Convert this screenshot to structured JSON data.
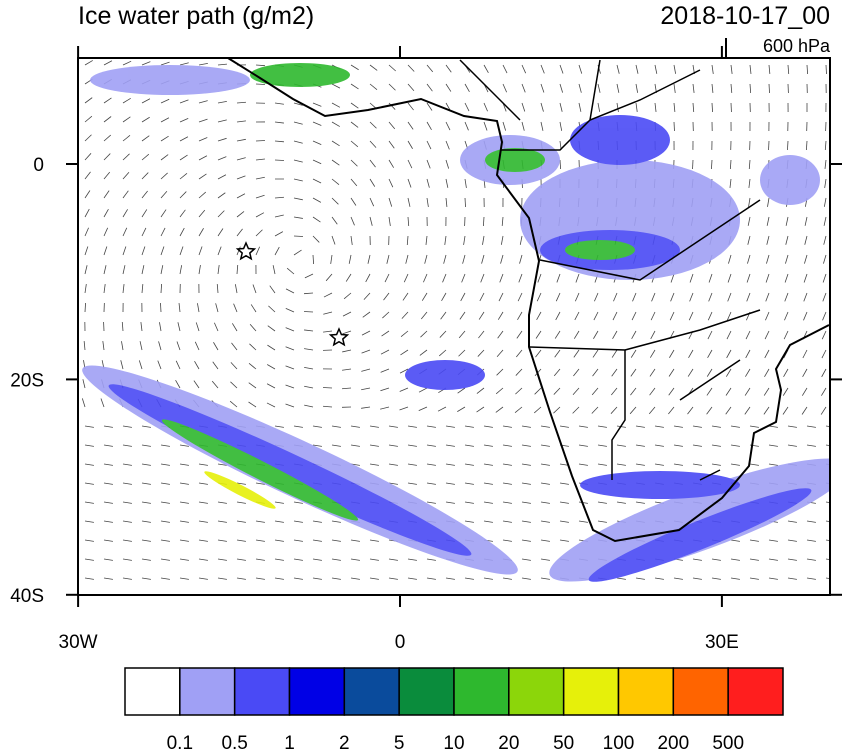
{
  "header": {
    "title": "Ice water path (g/m2)",
    "date": "2018-10-17_00",
    "level": "600 hPa"
  },
  "map": {
    "lat_ticks": [
      {
        "value": 0,
        "label": "0"
      },
      {
        "value": -20,
        "label": "20S"
      },
      {
        "value": -40,
        "label": "40S"
      }
    ],
    "lon_ticks": [
      {
        "value": -30,
        "label": "30W"
      },
      {
        "value": 0,
        "label": "0"
      },
      {
        "value": 30,
        "label": "30E"
      }
    ]
  },
  "colorbar": {
    "colors": [
      "#ffffff",
      "#a0a0f5",
      "#4a4af5",
      "#0000e6",
      "#0a4b9c",
      "#0a8c3c",
      "#2eb82e",
      "#8cd60a",
      "#e6f00a",
      "#ffc800",
      "#ff6400",
      "#ff1e1e"
    ],
    "labels": [
      0.1,
      0.5,
      1,
      2,
      5,
      10,
      20,
      50,
      100,
      200,
      500
    ]
  }
}
